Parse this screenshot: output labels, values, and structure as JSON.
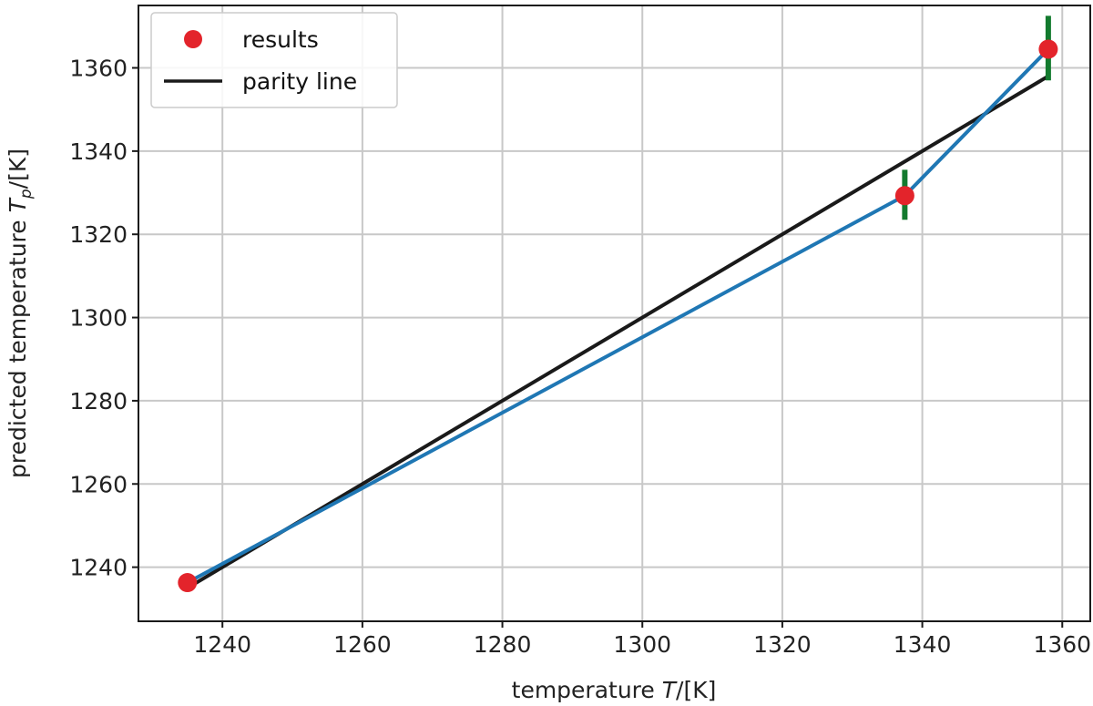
{
  "chart_data": {
    "type": "line",
    "xlabel_text": "temperature ",
    "xlabel_sym": "T",
    "xlabel_unit": "/[K]",
    "ylabel_text": "predicted temperature ",
    "ylabel_sym": "T",
    "ylabel_sub": "p",
    "ylabel_unit": "/[K]",
    "xlim": [
      1228,
      1364
    ],
    "ylim": [
      1227,
      1375
    ],
    "xticks": [
      1240,
      1260,
      1280,
      1300,
      1320,
      1340,
      1360
    ],
    "yticks": [
      1240,
      1260,
      1280,
      1300,
      1320,
      1340,
      1360
    ],
    "grid": true,
    "legend_position": "top-left",
    "legend": [
      {
        "label": "results",
        "marker": "circle",
        "color": "#e3242b"
      },
      {
        "label": "parity line",
        "marker": "line",
        "color": "#1a1a1a"
      }
    ],
    "series": [
      {
        "name": "results",
        "color": "#e3242b",
        "line_color": "#1f77b4",
        "x": [
          1235,
          1337.5,
          1358
        ],
        "y": [
          1236.3,
          1329.3,
          1364.5
        ],
        "error_low": [
          null,
          1323.5,
          1357
        ],
        "error_high": [
          null,
          1335.5,
          1372.5
        ],
        "error_color": "#137a2e"
      },
      {
        "name": "parity line",
        "color": "#1a1a1a",
        "x": [
          1235,
          1358
        ],
        "y": [
          1235,
          1358
        ]
      }
    ]
  }
}
